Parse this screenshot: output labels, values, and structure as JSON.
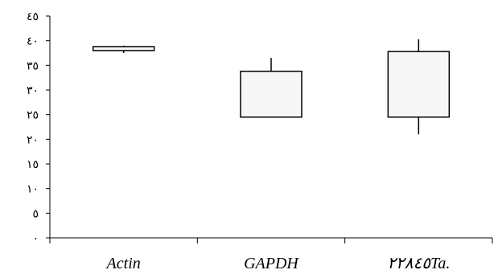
{
  "chart_data": {
    "type": "box",
    "title": "",
    "xlabel": "",
    "ylabel": "",
    "ylim": [
      0,
      45
    ],
    "yticks": [
      0,
      5,
      10,
      15,
      20,
      25,
      30,
      35,
      40,
      45
    ],
    "ytick_labels": [
      "٠",
      "٥",
      "١٠",
      "١٥",
      "٢٠",
      "٢٥",
      "٣٠",
      "٣٥",
      "٤٠",
      "٤٥"
    ],
    "categories": [
      "Actin",
      "GAPDH",
      "٢٢٨٤٥Ta."
    ],
    "boxes": [
      {
        "whisker_low": 37.5,
        "q1": 38.0,
        "q3": 38.8,
        "whisker_high": 39.0
      },
      {
        "whisker_low": 24.5,
        "q1": 24.5,
        "q3": 33.8,
        "whisker_high": 36.5
      },
      {
        "whisker_low": 21.0,
        "q1": 24.5,
        "q3": 37.8,
        "whisker_high": 40.3
      }
    ],
    "grid": false,
    "legend": "none",
    "box_fill": "#f7f7f7",
    "stroke_color": "#000000"
  }
}
